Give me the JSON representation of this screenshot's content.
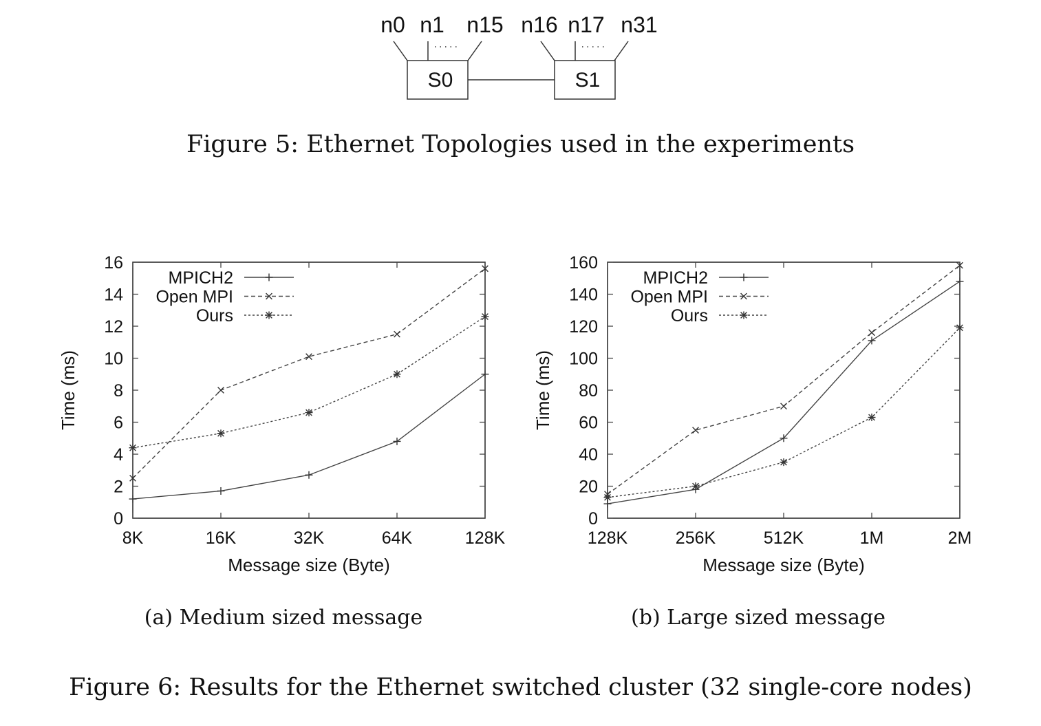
{
  "topology": {
    "switches": [
      "S0",
      "S1"
    ],
    "left_nodes": [
      "n0",
      "n1",
      "n15"
    ],
    "right_nodes": [
      "n16",
      "n17",
      "n31"
    ]
  },
  "fig5_caption": "Figure 5: Ethernet Topologies used in the experiments",
  "fig6_caption": "Figure 6: Results for the Ethernet switched cluster (32 single-core nodes)",
  "chart_data": [
    {
      "type": "line",
      "caption": "(a) Medium sized message",
      "xlabel": "Message size (Byte)",
      "ylabel": "Time (ms)",
      "categories": [
        "8K",
        "16K",
        "32K",
        "64K",
        "128K"
      ],
      "ylim": [
        0,
        16
      ],
      "yticks": [
        0,
        2,
        4,
        6,
        8,
        10,
        12,
        14,
        16
      ],
      "legend": "top-left",
      "series": [
        {
          "name": "MPICH2",
          "marker": "plus",
          "dash": "solid",
          "values": [
            1.2,
            1.7,
            2.7,
            4.8,
            9.0
          ]
        },
        {
          "name": "Open MPI",
          "marker": "cross",
          "dash": "dashed",
          "values": [
            2.5,
            8.0,
            10.1,
            11.5,
            15.6
          ]
        },
        {
          "name": "Ours",
          "marker": "star",
          "dash": "dotted",
          "values": [
            4.4,
            5.3,
            6.6,
            9.0,
            12.6
          ]
        }
      ]
    },
    {
      "type": "line",
      "caption": "(b) Large sized message",
      "xlabel": "Message size (Byte)",
      "ylabel": "Time (ms)",
      "categories": [
        "128K",
        "256K",
        "512K",
        "1M",
        "2M"
      ],
      "ylim": [
        0,
        160
      ],
      "yticks": [
        0,
        20,
        40,
        60,
        80,
        100,
        120,
        140,
        160
      ],
      "legend": "top-left",
      "series": [
        {
          "name": "MPICH2",
          "marker": "plus",
          "dash": "solid",
          "values": [
            9,
            18,
            50,
            111,
            148
          ]
        },
        {
          "name": "Open MPI",
          "marker": "cross",
          "dash": "dashed",
          "values": [
            15,
            55,
            70,
            116,
            158
          ]
        },
        {
          "name": "Ours",
          "marker": "star",
          "dash": "dotted",
          "values": [
            13,
            20,
            35,
            63,
            119
          ]
        }
      ]
    }
  ]
}
